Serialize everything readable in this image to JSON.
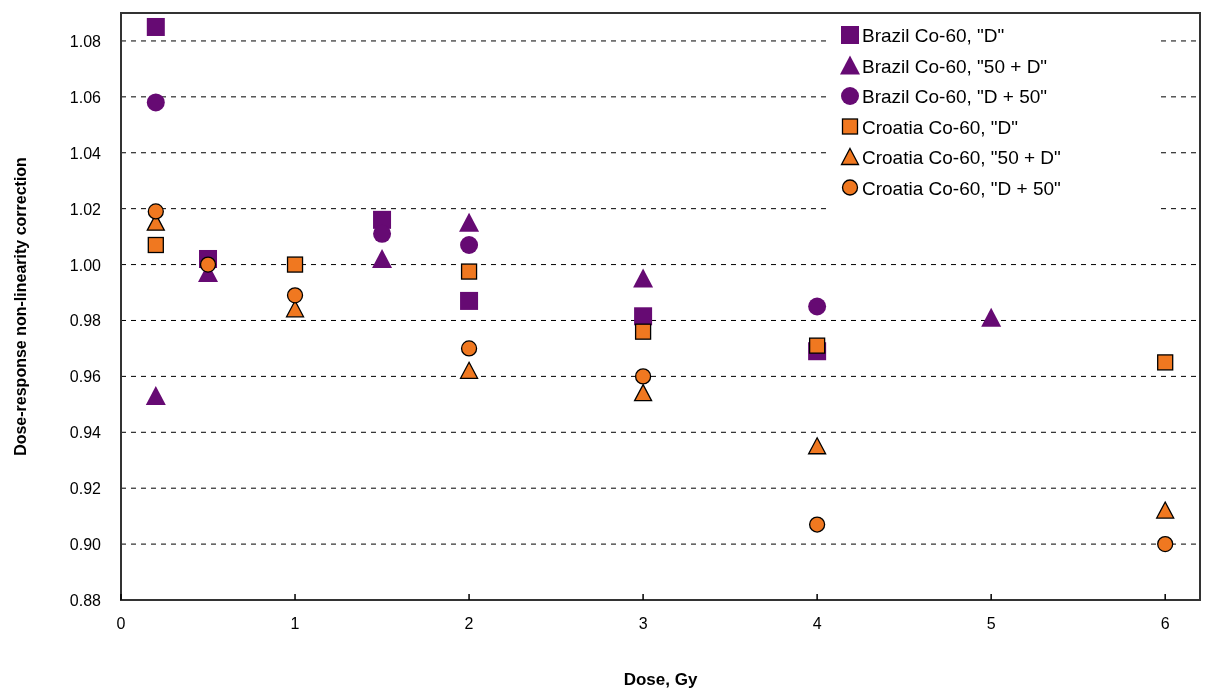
{
  "chart_data": {
    "type": "scatter",
    "xlabel": "Dose, Gy",
    "ylabel": "Dose-response non-linearity correction",
    "xlim": [
      0,
      6.2
    ],
    "xticks": [
      0,
      1,
      2,
      3,
      4,
      5,
      6
    ],
    "ylim": [
      0.88,
      1.09
    ],
    "yticks": [
      {
        "value": 0.88,
        "label": "0.88"
      },
      {
        "value": 0.9,
        "label": "0.90"
      },
      {
        "value": 0.92,
        "label": "0.92"
      },
      {
        "value": 0.94,
        "label": "0.94"
      },
      {
        "value": 0.96,
        "label": "0.96"
      },
      {
        "value": 0.98,
        "label": "0.98"
      },
      {
        "value": 1,
        "label": "1.00"
      },
      {
        "value": 1.02,
        "label": "1.02"
      },
      {
        "value": 1.04,
        "label": "1.04"
      },
      {
        "value": 1.06,
        "label": "1.06"
      },
      {
        "value": 1.08,
        "label": "1.08"
      }
    ],
    "grid": "y",
    "legend": "top right",
    "series": [
      {
        "name": "Brazil Co-60, \"D\"",
        "color": "#660a73",
        "marker": "square",
        "x": [
          0.2,
          0.5,
          1.5,
          2,
          3,
          4
        ],
        "values": [
          1.085,
          1.002,
          1.016,
          0.987,
          0.9815,
          0.969
        ]
      },
      {
        "name": "Brazil Co-60, \"50 + D\"",
        "color": "#660a73",
        "marker": "triangle",
        "x": [
          0.2,
          0.5,
          1.5,
          2,
          3,
          5
        ],
        "values": [
          0.953,
          0.997,
          1.002,
          1.015,
          0.995,
          0.981
        ]
      },
      {
        "name": "Brazil Co-60, \"D + 50\"",
        "color": "#660a73",
        "marker": "circle",
        "x": [
          0.2,
          1.5,
          2,
          4
        ],
        "values": [
          1.058,
          1.011,
          1.007,
          0.985
        ]
      },
      {
        "name": "Croatia Co-60, \"D\"",
        "color": "#f07820",
        "marker": "square",
        "x": [
          0.2,
          1,
          2,
          3,
          4,
          6
        ],
        "values": [
          1.007,
          1.0,
          0.9975,
          0.976,
          0.971,
          0.965
        ]
      },
      {
        "name": "Croatia Co-60, \"50 + D\"",
        "color": "#f07820",
        "marker": "triangle",
        "x": [
          0.2,
          1,
          2,
          3,
          4,
          6
        ],
        "values": [
          1.015,
          0.984,
          0.962,
          0.954,
          0.935,
          0.912
        ]
      },
      {
        "name": "Croatia Co-60, \"D + 50\"",
        "color": "#f07820",
        "marker": "circle",
        "x": [
          0.2,
          0.5,
          1,
          2,
          3,
          4,
          6
        ],
        "values": [
          1.019,
          1.0,
          0.989,
          0.97,
          0.96,
          0.907,
          0.9
        ]
      }
    ]
  }
}
